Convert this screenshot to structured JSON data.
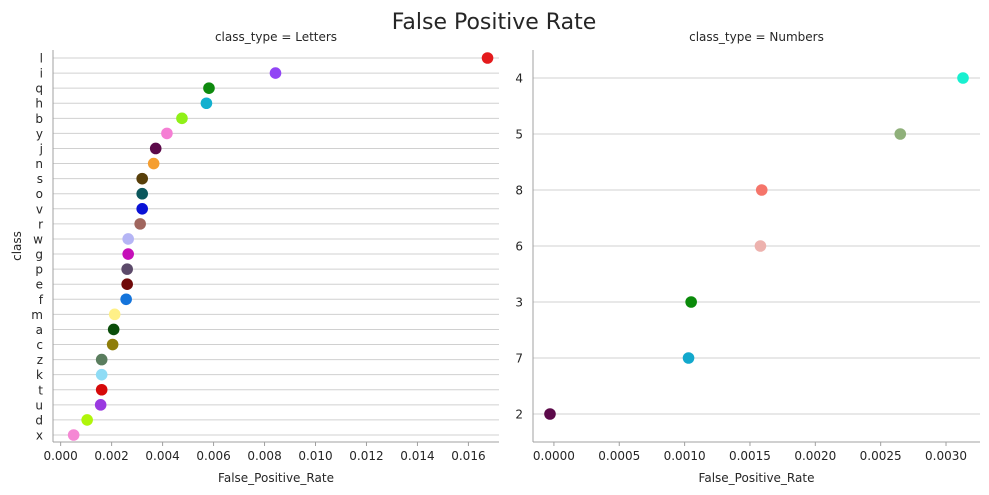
{
  "title": "False Positive Rate",
  "chart_data": [
    {
      "type": "scatter",
      "title": "class_type = Letters",
      "xlabel": "False_Positive_Rate",
      "ylabel": "class",
      "xlim": [
        -0.0003,
        0.0172
      ],
      "xticks": [
        "0.000",
        "0.002",
        "0.004",
        "0.006",
        "0.008",
        "0.010",
        "0.012",
        "0.014",
        "0.016"
      ],
      "xtick_values": [
        0,
        0.002,
        0.004,
        0.006,
        0.008,
        0.01,
        0.012,
        0.014,
        0.016
      ],
      "grid": "horizontal",
      "categories": [
        "l",
        "i",
        "q",
        "h",
        "b",
        "y",
        "j",
        "n",
        "s",
        "o",
        "v",
        "r",
        "w",
        "g",
        "p",
        "e",
        "f",
        "m",
        "a",
        "c",
        "z",
        "k",
        "t",
        "u",
        "d",
        "x"
      ],
      "values": [
        0.01675,
        0.00843,
        0.00582,
        0.00572,
        0.00476,
        0.00417,
        0.00373,
        0.00365,
        0.0032,
        0.0032,
        0.0032,
        0.00312,
        0.00265,
        0.00265,
        0.00261,
        0.00261,
        0.00257,
        0.00212,
        0.00208,
        0.00204,
        0.00161,
        0.00161,
        0.00161,
        0.00157,
        0.00104,
        0.00051
      ],
      "colors": [
        "#e41a1c",
        "#9145f5",
        "#0e8a0e",
        "#12b0cf",
        "#90f018",
        "#f57fd4",
        "#5c0a4a",
        "#f59e30",
        "#583f0a",
        "#0b575c",
        "#0a12d6",
        "#a0665e",
        "#b5b5f5",
        "#c50fb8",
        "#5c4a6a",
        "#700a0a",
        "#1474db",
        "#fff087",
        "#0a4d0a",
        "#8e7d0a",
        "#5a7d5e",
        "#8fdcf5",
        "#d60a0a",
        "#9a3ae0",
        "#b0f50a",
        "#f587d4"
      ]
    },
    {
      "type": "scatter",
      "title": "class_type = Numbers",
      "xlabel": "False_Positive_Rate",
      "ylabel": "",
      "xlim": [
        -0.00016,
        0.00326
      ],
      "xticks": [
        "0.0000",
        "0.0005",
        "0.0010",
        "0.0015",
        "0.0020",
        "0.0025",
        "0.0030"
      ],
      "xtick_values": [
        0,
        0.0005,
        0.001,
        0.0015,
        0.002,
        0.0025,
        0.003
      ],
      "grid": "horizontal",
      "categories": [
        "4",
        "5",
        "8",
        "6",
        "3",
        "7",
        "2"
      ],
      "values": [
        0.00313,
        0.00265,
        0.00159,
        0.00158,
        0.00105,
        0.00103,
        -3e-05
      ],
      "colors": [
        "#18f0d0",
        "#8fb07a",
        "#f5756a",
        "#edb2ae",
        "#0a8a0a",
        "#12a8cc",
        "#5c0a4a"
      ]
    }
  ]
}
